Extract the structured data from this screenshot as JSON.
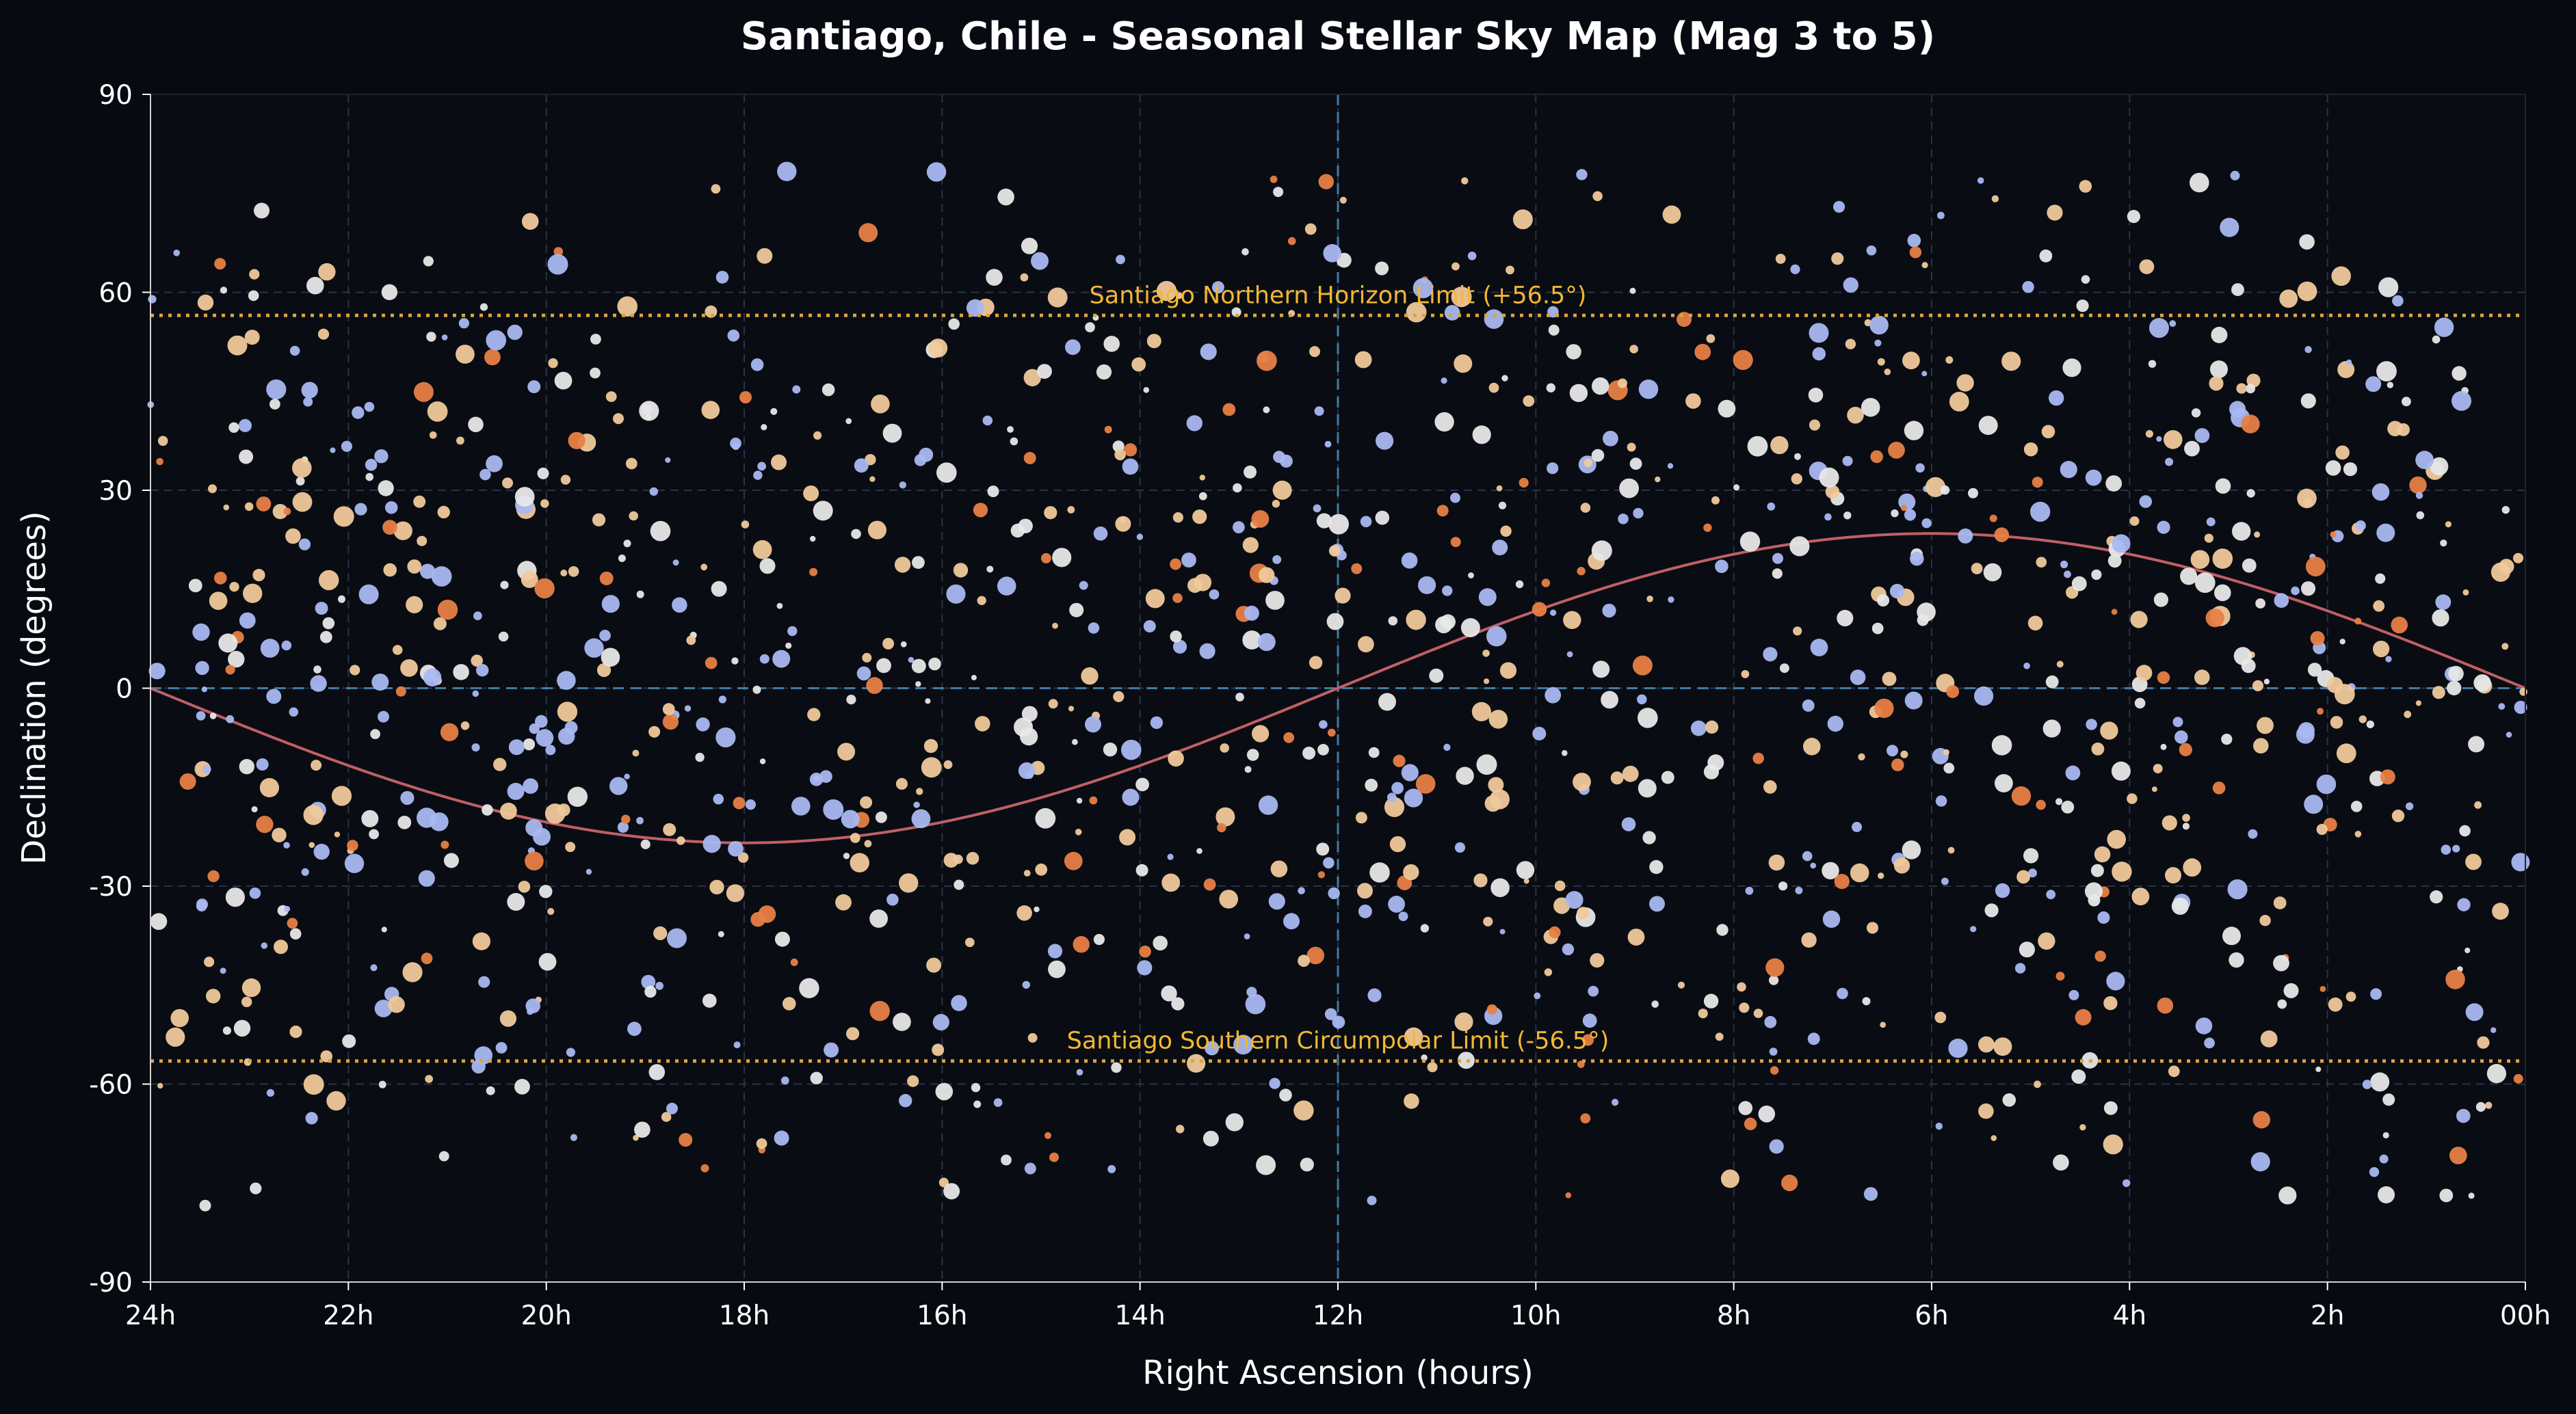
{
  "chart_data": {
    "type": "scatter",
    "title": "Santiago, Chile - Seasonal Stellar Sky Map (Mag 3 to 5)",
    "xlabel": "Right Ascension (hours)",
    "ylabel": "Declination (degrees)",
    "xlim": [
      24,
      0
    ],
    "ylim": [
      -90,
      90
    ],
    "x_reversed": true,
    "grid": true,
    "x_ticks": [
      24,
      22,
      20,
      18,
      16,
      14,
      12,
      10,
      8,
      6,
      4,
      2,
      0
    ],
    "x_tick_labels": [
      "24h",
      "22h",
      "20h",
      "18h",
      "16h",
      "14h",
      "12h",
      "10h",
      "8h",
      "6h",
      "4h",
      "2h",
      "00h"
    ],
    "y_ticks": [
      90,
      60,
      30,
      0,
      -30,
      -60,
      -90
    ],
    "y_tick_labels": [
      "90",
      "60",
      "30",
      "0",
      "-30",
      "-60",
      "-90"
    ],
    "reference_lines": {
      "celestial_equator_dec": 0,
      "meridian_ra": 12,
      "ecliptic_obliquity_deg": 23.44
    },
    "annotations": [
      {
        "text": "Santiago Northern Horizon Limit (+56.5°)",
        "dec": 56.5
      },
      {
        "text": "Santiago Southern Circumpolar Limit (-56.5°)",
        "dec": -56.5
      }
    ],
    "star_count_estimate": 1300,
    "magnitude_range": [
      3,
      5
    ],
    "star_colors": [
      "#a9b8f0",
      "#e8e8e8",
      "#f0c99a",
      "#e87f45"
    ],
    "colors": {
      "background": "#070a10",
      "plot_background": "#090c13",
      "grid": "#2a3344",
      "equator": "#4a8bb8",
      "ecliptic": "#c05f66",
      "limit_line": "#d9a441",
      "limit_text": "#f2b733",
      "text": "#ffffff"
    }
  }
}
